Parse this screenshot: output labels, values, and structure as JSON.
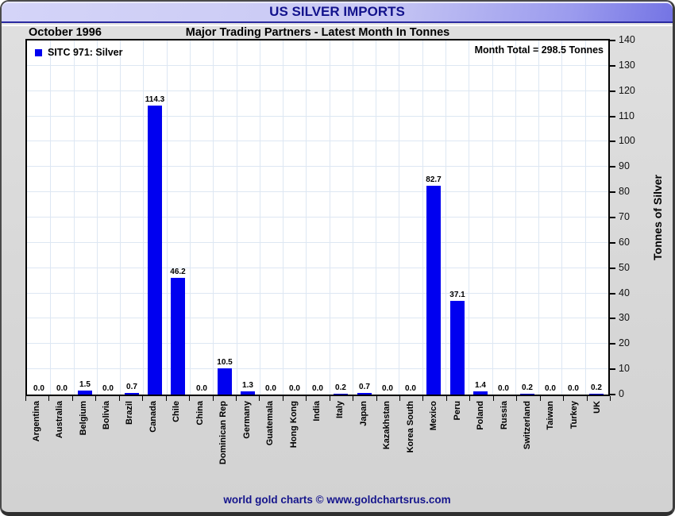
{
  "header": {
    "title": "US SILVER IMPORTS",
    "date": "October 1996",
    "subtitle": "Major Trading Partners - Latest Month In Tonnes"
  },
  "legend": {
    "label": "SITC 971: Silver"
  },
  "annotations": {
    "month_total": "Month Total = 298.5 Tonnes"
  },
  "footer": {
    "credit": "world gold charts © www.goldchartsrus.com"
  },
  "colors": {
    "bar": "#0000f0",
    "grid": "#dde7f3",
    "navy": "#12128c",
    "header_gradient_start": "#d4d4f8",
    "header_gradient_end": "#7474e4"
  },
  "chart_data": {
    "type": "bar",
    "title": "US SILVER IMPORTS",
    "subtitle": "Major Trading Partners - Latest Month In Tonnes",
    "period": "October 1996",
    "legend": "SITC 971: Silver",
    "legend_position": "top-left",
    "month_total_tonnes": 298.5,
    "ylabel": "Tonnes of Silver",
    "ylim": [
      0,
      140
    ],
    "ytick_step": 10,
    "grid": true,
    "categories": [
      "Argentina",
      "Australia",
      "Belgium",
      "Bolivia",
      "Brazil",
      "Canada",
      "Chile",
      "China",
      "Dominican Rep",
      "Germany",
      "Guatemala",
      "Hong Kong",
      "India",
      "Italy",
      "Japan",
      "Kazakhstan",
      "Korea South",
      "Mexico",
      "Peru",
      "Poland",
      "Russia",
      "Switzerland",
      "Taiwan",
      "Turkey",
      "UK"
    ],
    "values": [
      0.0,
      0.0,
      1.5,
      0.0,
      0.7,
      114.3,
      46.2,
      0.0,
      10.5,
      1.3,
      0.0,
      0.0,
      0.0,
      0.2,
      0.7,
      0.0,
      0.0,
      82.7,
      37.1,
      1.4,
      0.0,
      0.2,
      0.0,
      0.0,
      0.2
    ],
    "value_labels": [
      "0.0",
      "0.0",
      "1.5",
      "0.0",
      "0.7",
      "114.3",
      "46.2",
      "0.0",
      "10.5",
      "1.3",
      "0.0",
      "0.0",
      "0.0",
      "0.2",
      "0.7",
      "0.0",
      "0.0",
      "82.7",
      "37.1",
      "1.4",
      "0.0",
      "0.2",
      "0.0",
      "0.0",
      "0.2"
    ]
  }
}
